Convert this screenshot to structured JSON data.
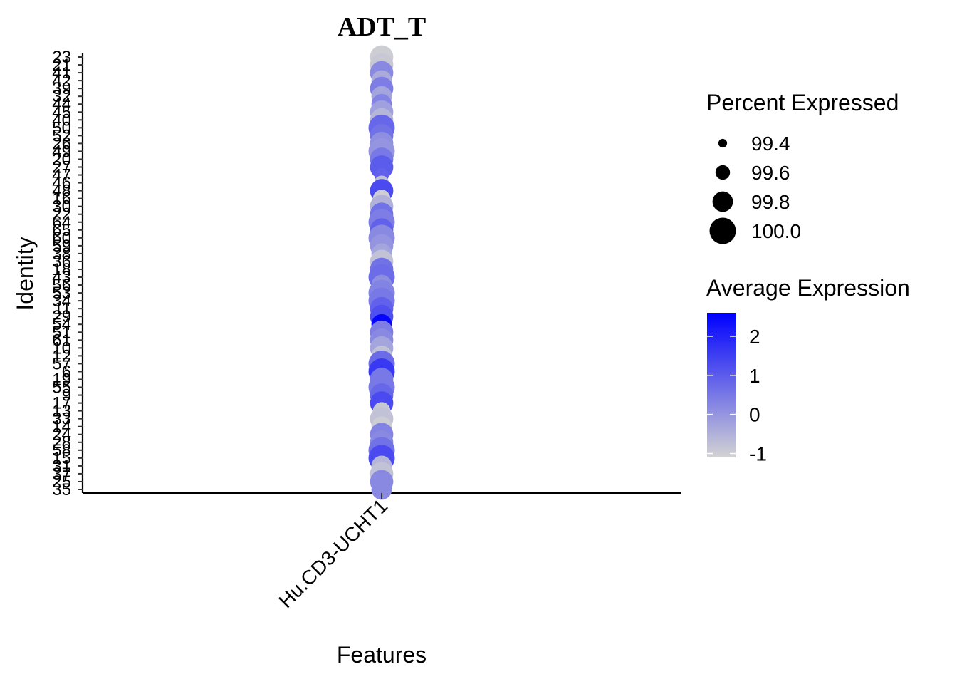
{
  "chart_data": {
    "type": "dotplot",
    "title": "ADT_T",
    "xlabel": "Features",
    "ylabel": "Identity",
    "features": [
      "Hu.CD3-UCHT1"
    ],
    "identities": [
      "23",
      "21",
      "41",
      "42",
      "39",
      "32",
      "44",
      "45",
      "40",
      "50",
      "52",
      "26",
      "49",
      "20",
      "27",
      "47",
      "46",
      "48",
      "16",
      "30",
      "22",
      "64",
      "65",
      "60",
      "59",
      "38",
      "36",
      "18",
      "43",
      "56",
      "53",
      "34",
      "11",
      "29",
      "54",
      "51",
      "61",
      "10",
      "12",
      "57",
      "6",
      "19",
      "55",
      "9",
      "17",
      "13",
      "33",
      "14",
      "24",
      "28",
      "58",
      "15",
      "31",
      "37",
      "25",
      "35"
    ],
    "values": [
      -1.0,
      -0.9,
      0.2,
      -0.4,
      0.4,
      -0.3,
      0.3,
      -0.2,
      -0.6,
      0.8,
      0.6,
      0.1,
      0.0,
      0.5,
      1.0,
      0.9,
      -0.8,
      1.3,
      -1.0,
      -0.5,
      0.6,
      0.4,
      0.9,
      0.2,
      0.0,
      -0.3,
      -0.8,
      0.6,
      0.7,
      0.1,
      0.3,
      0.5,
      0.9,
      1.2,
      2.5,
      0.4,
      0.2,
      -0.3,
      -0.8,
      0.7,
      1.6,
      0.5,
      0.5,
      0.8,
      1.3,
      -0.9,
      -0.8,
      -1.0,
      0.3,
      0.2,
      0.6,
      1.3,
      -0.6,
      -0.8,
      0.2,
      0.2
    ],
    "percent_expressed": [
      99.9,
      99.9,
      99.9,
      99.8,
      99.9,
      99.8,
      99.8,
      99.9,
      99.9,
      100.0,
      99.9,
      99.9,
      100.0,
      99.9,
      99.9,
      99.6,
      99.6,
      99.9,
      99.7,
      99.9,
      99.9,
      100.0,
      99.9,
      100.0,
      99.9,
      99.8,
      99.9,
      99.9,
      100.0,
      99.8,
      100.0,
      100.0,
      99.9,
      99.9,
      99.8,
      99.9,
      99.9,
      99.9,
      99.8,
      100.0,
      100.0,
      99.9,
      100.0,
      99.9,
      99.9,
      99.7,
      99.9,
      99.8,
      99.9,
      99.9,
      100.0,
      100.0,
      99.8,
      99.9,
      99.9,
      99.8
    ],
    "legend_size": {
      "title": "Percent Expressed",
      "breaks": [
        99.4,
        99.6,
        99.8,
        100.0
      ],
      "labels": [
        "99.4",
        "99.6",
        "99.8",
        "100.0"
      ]
    },
    "legend_color": {
      "title": "Average Expression",
      "breaks": [
        2,
        1,
        0,
        -1
      ],
      "labels": [
        "2",
        "1",
        "0",
        "-1"
      ],
      "low_color": "#D3D3D3",
      "high_color": "#0000FF",
      "range": [
        -1.1,
        2.6
      ]
    },
    "grid": false,
    "legend_position": "right"
  }
}
